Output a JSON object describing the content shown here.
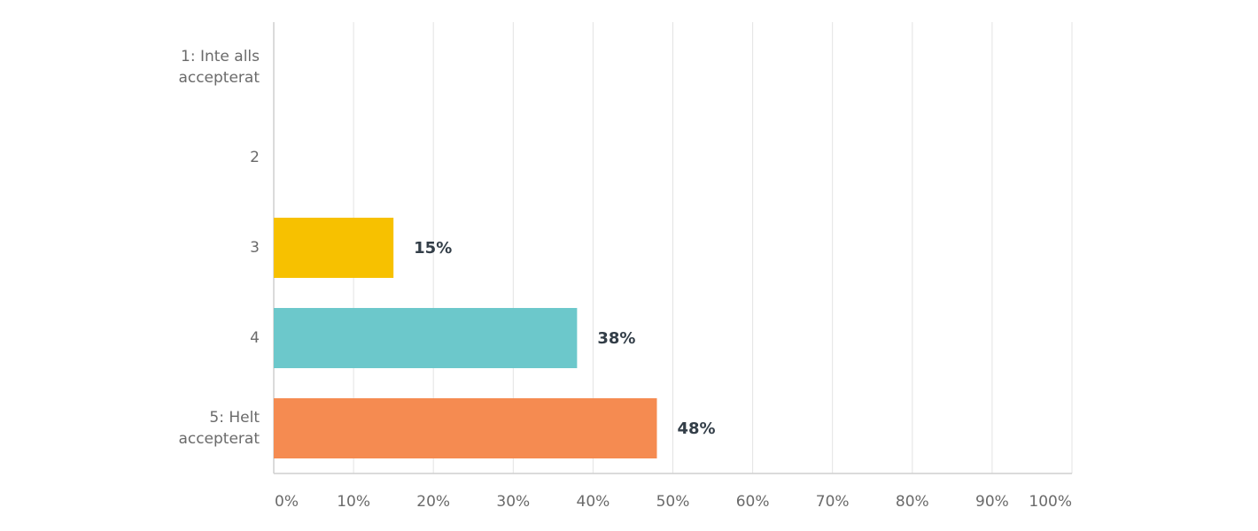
{
  "chart_data": {
    "type": "bar",
    "orientation": "horizontal",
    "categories": [
      "1: Inte alls accepterat",
      "2",
      "3",
      "4",
      "5: Helt accepterat"
    ],
    "values": [
      0,
      0,
      15,
      38,
      48
    ],
    "value_labels": [
      null,
      null,
      "15%",
      "38%",
      "48%"
    ],
    "colors": [
      "#f7c100",
      "#6cc8cb",
      "#f7c100",
      "#6cc8cb",
      "#f58b51"
    ],
    "xlim": [
      0,
      100
    ],
    "xticks": [
      {
        "value": 0,
        "label": "0%"
      },
      {
        "value": 10,
        "label": "10%"
      },
      {
        "value": 20,
        "label": "20%"
      },
      {
        "value": 30,
        "label": "30%"
      },
      {
        "value": 40,
        "label": "40%"
      },
      {
        "value": 50,
        "label": "50%"
      },
      {
        "value": 60,
        "label": "60%"
      },
      {
        "value": 70,
        "label": "70%"
      },
      {
        "value": 80,
        "label": "80%"
      },
      {
        "value": 90,
        "label": "90%"
      },
      {
        "value": 100,
        "label": "100%"
      }
    ],
    "grid": true
  }
}
